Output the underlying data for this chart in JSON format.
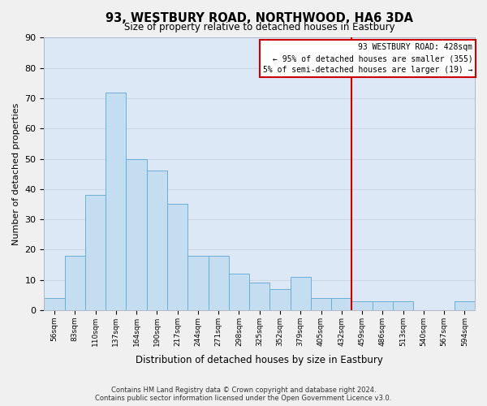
{
  "title": "93, WESTBURY ROAD, NORTHWOOD, HA6 3DA",
  "subtitle": "Size of property relative to detached houses in Eastbury",
  "xlabel": "Distribution of detached houses by size in Eastbury",
  "ylabel": "Number of detached properties",
  "bar_labels": [
    "56sqm",
    "83sqm",
    "110sqm",
    "137sqm",
    "164sqm",
    "190sqm",
    "217sqm",
    "244sqm",
    "271sqm",
    "298sqm",
    "325sqm",
    "352sqm",
    "379sqm",
    "405sqm",
    "432sqm",
    "459sqm",
    "486sqm",
    "513sqm",
    "540sqm",
    "567sqm",
    "594sqm"
  ],
  "bar_values": [
    4,
    18,
    38,
    72,
    50,
    46,
    35,
    18,
    18,
    12,
    9,
    7,
    11,
    4,
    4,
    3,
    3,
    3,
    0,
    0,
    3
  ],
  "bar_color": "#c5ddf0",
  "bar_edge_color": "#6aaed6",
  "grid_color": "#d0d8e8",
  "background_color": "#dce8f5",
  "fig_background_color": "#f0f0f0",
  "ylim": [
    0,
    90
  ],
  "yticks": [
    0,
    10,
    20,
    30,
    40,
    50,
    60,
    70,
    80,
    90
  ],
  "property_line_color": "#cc0000",
  "annotation_title": "93 WESTBURY ROAD: 428sqm",
  "annotation_line1": "← 95% of detached houses are smaller (355)",
  "annotation_line2": "5% of semi-detached houses are larger (19) →",
  "annotation_box_color": "#ffffff",
  "annotation_border_color": "#cc0000",
  "footer_line1": "Contains HM Land Registry data © Crown copyright and database right 2024.",
  "footer_line2": "Contains public sector information licensed under the Open Government Licence v3.0."
}
